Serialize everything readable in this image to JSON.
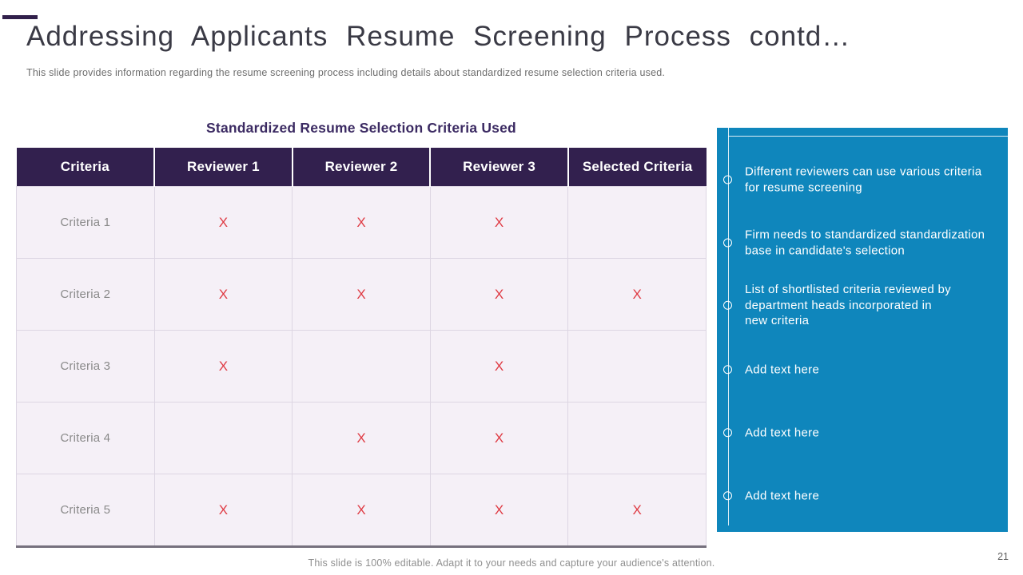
{
  "slide": {
    "title": "Addressing Applicants Resume Screening Process contd…",
    "subtitle": "This slide provides information regarding the resume screening process including details about standardized resume selection criteria used.",
    "footer": "This slide is 100% editable. Adapt it to your needs and capture your audience's attention.",
    "page_number": "21"
  },
  "table": {
    "title": "Standardized Resume Selection Criteria Used",
    "headers": [
      "Criteria",
      "Reviewer 1",
      "Reviewer 2",
      "Reviewer 3",
      "Selected Criteria"
    ],
    "rows": [
      {
        "label": "Criteria 1",
        "marks": [
          "X",
          "X",
          "X",
          ""
        ]
      },
      {
        "label": "Criteria 2",
        "marks": [
          "X",
          "X",
          "X",
          "X"
        ]
      },
      {
        "label": "Criteria 3",
        "marks": [
          "X",
          "",
          "X",
          ""
        ]
      },
      {
        "label": "Criteria 4",
        "marks": [
          "",
          "X",
          "X",
          ""
        ]
      },
      {
        "label": "Criteria 5",
        "marks": [
          "X",
          "X",
          "X",
          "X"
        ]
      }
    ],
    "mark_symbol": "X"
  },
  "side_panel": {
    "bullets": [
      "Different reviewers can use various criteria\nfor resume screening",
      "Firm needs to standardized standardization\nbase in candidate's selection",
      "List of shortlisted criteria reviewed by\ndepartment heads incorporated in\nnew criteria",
      "Add text here",
      "Add text here",
      "Add text here"
    ]
  },
  "colors": {
    "header_purple": "#32204e",
    "accent_purple": "#31204b",
    "table_title_purple": "#3b2a62",
    "panel_blue": "#0f86bc",
    "mark_red": "#df3b44",
    "row_background": "#f5f0f7"
  }
}
